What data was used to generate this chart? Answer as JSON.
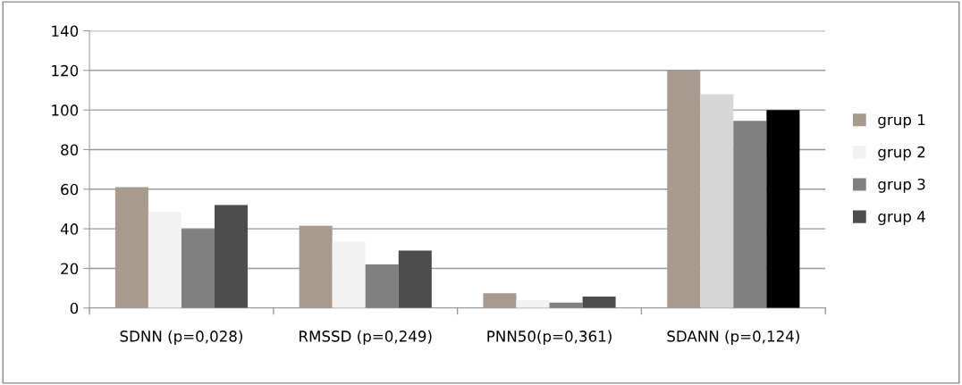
{
  "chart_data": {
    "type": "bar",
    "categories": [
      "SDNN (p=0,028)",
      "RMSSD (p=0,249)",
      "PNN50(p=0,361)",
      "SDANN (p=0,124)"
    ],
    "series": [
      {
        "name": "grup 1",
        "color": "#a89a8c",
        "values": [
          61,
          41.5,
          7.5,
          120
        ]
      },
      {
        "name": "grup 2",
        "color": "#f2f2f2",
        "colors": [
          "#f2f2f2",
          "#f2f2f2",
          "#f2f2f2",
          "#d6d6d6"
        ],
        "values": [
          48.5,
          33.5,
          4,
          108
        ]
      },
      {
        "name": "grup 3",
        "color": "#808080",
        "values": [
          40,
          22,
          2.7,
          94.5
        ]
      },
      {
        "name": "grup 4",
        "color": "#4d4d4d",
        "colors": [
          "#4d4d4d",
          "#4d4d4d",
          "#4d4d4d",
          "#000000"
        ],
        "values": [
          52,
          29,
          5.8,
          100
        ]
      }
    ],
    "ylim": [
      0,
      140
    ],
    "yticks": [
      0,
      20,
      40,
      60,
      80,
      100,
      120,
      140
    ],
    "grid": "y",
    "legend": "right"
  }
}
